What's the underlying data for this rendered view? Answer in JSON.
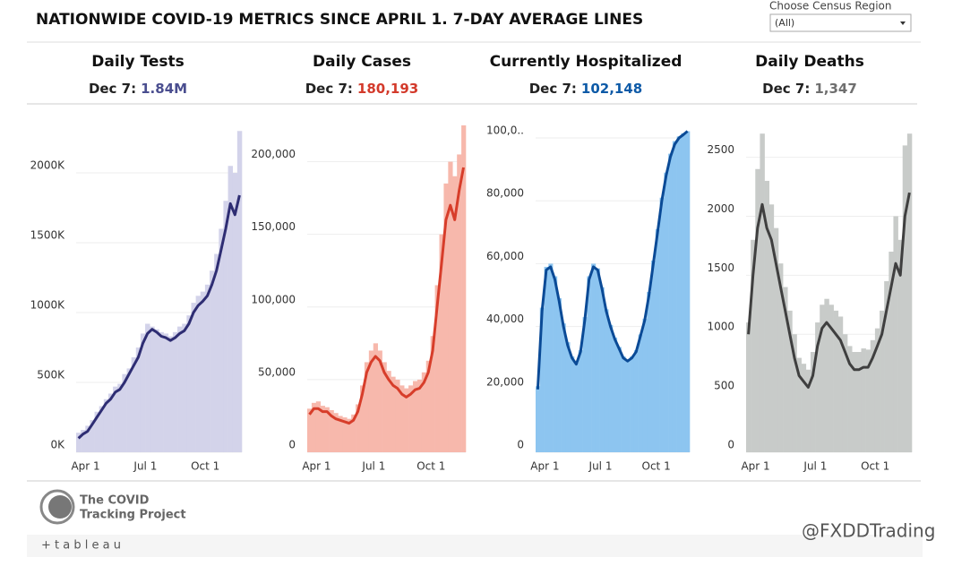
{
  "header": {
    "title": "NATIONWIDE COVID-19 METRICS SINCE APRIL 1. 7-DAY AVERAGE LINES",
    "filter_label": "Choose Census Region",
    "filter_value": "(All)"
  },
  "footer": {
    "logo_line1": "The COVID",
    "logo_line2": "Tracking Project",
    "tableau": "+ t a b l e a u",
    "watermark": "@FXDDTrading"
  },
  "chart_data": [
    {
      "type": "combo",
      "title": "Daily Tests",
      "subtitle_label": "Dec 7:",
      "subtitle_value": "1.84M",
      "subtitle_color": "#4a4e8f",
      "categories": [
        "Apr 1",
        null,
        null,
        null,
        null,
        null,
        null,
        null,
        null,
        null,
        null,
        null,
        null,
        "Jul 1",
        null,
        null,
        null,
        null,
        null,
        null,
        null,
        null,
        null,
        null,
        null,
        null,
        "Oct 1",
        null,
        null,
        null,
        null,
        null,
        null,
        null,
        null,
        null
      ],
      "ylim": [
        0,
        2340
      ],
      "yticks": [
        {
          "value": 0,
          "label": "0K"
        },
        {
          "value": 500,
          "label": "500K"
        },
        {
          "value": 1000,
          "label": "1000K"
        },
        {
          "value": 1500,
          "label": "1500K"
        },
        {
          "value": 2000,
          "label": "2000K"
        }
      ],
      "series": [
        {
          "style": "bar",
          "color": "#d3d3ea",
          "values": [
            140,
            160,
            190,
            230,
            290,
            330,
            380,
            420,
            470,
            490,
            560,
            600,
            680,
            750,
            850,
            920,
            900,
            880,
            860,
            850,
            830,
            860,
            900,
            920,
            980,
            1070,
            1120,
            1150,
            1200,
            1300,
            1420,
            1600,
            1800,
            2050,
            2000,
            2300
          ]
        },
        {
          "style": "line",
          "color": "#2e2d73",
          "values": [
            100,
            130,
            150,
            200,
            250,
            300,
            350,
            380,
            430,
            450,
            500,
            560,
            620,
            680,
            780,
            850,
            880,
            860,
            830,
            820,
            800,
            820,
            850,
            870,
            920,
            1000,
            1050,
            1080,
            1120,
            1200,
            1300,
            1450,
            1600,
            1780,
            1700,
            1840
          ]
        }
      ]
    },
    {
      "type": "combo",
      "title": "Daily Cases",
      "subtitle_label": "Dec 7:",
      "subtitle_value": "180,193",
      "subtitle_color": "#d33a2b",
      "categories": [
        "Apr 1",
        null,
        null,
        null,
        null,
        null,
        null,
        null,
        null,
        null,
        null,
        null,
        null,
        "Jul 1",
        null,
        null,
        null,
        null,
        null,
        null,
        null,
        null,
        null,
        null,
        null,
        null,
        "Oct 1",
        null,
        null,
        null,
        null,
        null,
        null,
        null,
        null,
        null
      ],
      "ylim": [
        0,
        225000
      ],
      "yticks": [
        0,
        {
          "value": 50000,
          "label": "50,000"
        },
        {
          "value": 100000,
          "label": "100,000"
        },
        {
          "value": 150000,
          "label": "150,000"
        },
        {
          "value": 200000,
          "label": "200,000"
        }
      ],
      "series": [
        {
          "style": "bar",
          "color": "#f7b8ac",
          "values": [
            30000,
            34000,
            35000,
            32000,
            31000,
            29000,
            27000,
            25000,
            24000,
            23000,
            26000,
            33000,
            46000,
            62000,
            70000,
            75000,
            70000,
            62000,
            56000,
            52000,
            50000,
            46000,
            44000,
            46000,
            49000,
            50000,
            55000,
            63000,
            80000,
            115000,
            150000,
            185000,
            200000,
            190000,
            205000,
            225000
          ]
        },
        {
          "style": "line",
          "color": "#d73d2a",
          "values": [
            26000,
            30000,
            30000,
            28000,
            28000,
            25000,
            23000,
            22000,
            21000,
            20000,
            22000,
            28000,
            40000,
            55000,
            62000,
            66000,
            63000,
            55000,
            50000,
            46000,
            44000,
            40000,
            38000,
            40000,
            43000,
            44000,
            48000,
            55000,
            70000,
            100000,
            130000,
            160000,
            170000,
            160000,
            180000,
            196000
          ]
        }
      ]
    },
    {
      "type": "combo",
      "title": "Currently Hospitalized",
      "subtitle_label": "Dec 7:",
      "subtitle_value": "102,148",
      "subtitle_color": "#0d5aa7",
      "categories": [
        "Apr 1",
        null,
        null,
        null,
        null,
        null,
        null,
        null,
        null,
        null,
        null,
        null,
        null,
        "Jul 1",
        null,
        null,
        null,
        null,
        null,
        null,
        null,
        null,
        null,
        null,
        null,
        null,
        "Oct 1",
        null,
        null,
        null,
        null,
        null,
        null,
        null,
        null,
        null
      ],
      "ylim": [
        0,
        104000
      ],
      "yticks": [
        0,
        {
          "value": 20000,
          "label": "20,000"
        },
        {
          "value": 40000,
          "label": "40,000"
        },
        {
          "value": 60000,
          "label": "60,000"
        },
        {
          "value": 80000,
          "label": "80,000"
        },
        {
          "value": 100000,
          "label": "100,0.."
        }
      ],
      "series": [
        {
          "style": "bar",
          "color": "#8dc5f0",
          "values": [
            21000,
            46000,
            59000,
            60000,
            56000,
            49000,
            41000,
            35000,
            30500,
            28500,
            32500,
            43000,
            56000,
            60000,
            58500,
            52500,
            45500,
            40500,
            36500,
            33500,
            30500,
            29500,
            30500,
            32500,
            37500,
            42500,
            51000,
            61000,
            71000,
            81000,
            89000,
            95000,
            99000,
            100500,
            101500,
            102148
          ]
        },
        {
          "style": "line",
          "color": "#0a4a96",
          "values": [
            20000,
            45000,
            58000,
            59000,
            55000,
            48000,
            40000,
            34000,
            30000,
            28000,
            32000,
            42000,
            55000,
            59000,
            58000,
            52000,
            45000,
            40000,
            36000,
            33000,
            30000,
            29000,
            30000,
            32000,
            37000,
            42000,
            50000,
            60000,
            70000,
            80000,
            88000,
            94000,
            98000,
            100000,
            101000,
            102148
          ]
        }
      ]
    },
    {
      "type": "combo",
      "title": "Daily Deaths",
      "subtitle_label": "Dec 7:",
      "subtitle_value": "1,347",
      "subtitle_color": "#6f6f6f",
      "categories": [
        "Apr 1",
        null,
        null,
        null,
        null,
        null,
        null,
        null,
        null,
        null,
        null,
        null,
        null,
        "Jul 1",
        null,
        null,
        null,
        null,
        null,
        null,
        null,
        null,
        null,
        null,
        null,
        null,
        "Oct 1",
        null,
        null,
        null,
        null,
        null,
        null,
        null,
        null,
        null
      ],
      "ylim": [
        0,
        2770
      ],
      "yticks": [
        0,
        500,
        1000,
        1500,
        2000,
        2500
      ],
      "series": [
        {
          "style": "bar",
          "color": "#c8cbc9",
          "values": [
            1100,
            1800,
            2400,
            2700,
            2300,
            2100,
            1900,
            1600,
            1400,
            1200,
            1000,
            800,
            750,
            700,
            850,
            1100,
            1250,
            1300,
            1250,
            1200,
            1150,
            1000,
            900,
            850,
            850,
            880,
            870,
            950,
            1050,
            1200,
            1450,
            1700,
            2000,
            1800,
            2600,
            2700
          ]
        },
        {
          "style": "line",
          "color": "#3f3f3f",
          "values": [
            1000,
            1500,
            1900,
            2100,
            1900,
            1800,
            1600,
            1400,
            1200,
            1000,
            800,
            650,
            600,
            550,
            650,
            900,
            1050,
            1100,
            1050,
            1000,
            950,
            850,
            750,
            700,
            700,
            720,
            720,
            800,
            900,
            1000,
            1200,
            1400,
            1600,
            1500,
            2000,
            2200
          ]
        }
      ]
    }
  ]
}
